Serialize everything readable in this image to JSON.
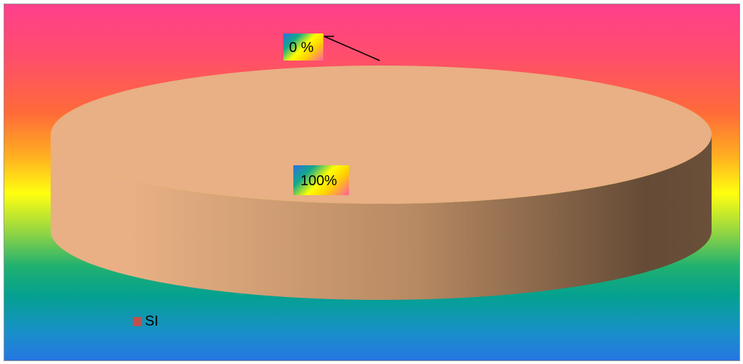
{
  "chart_data": {
    "type": "pie",
    "title": "",
    "categories": [
      "SI",
      ""
    ],
    "values": [
      100,
      0
    ],
    "data_labels": [
      "100%",
      "0 %"
    ],
    "legend": {
      "position": "bottom-left",
      "entries": [
        "SI"
      ]
    },
    "colors": {
      "slice_top": "#e8b084",
      "slice_side_light": "#e8b084",
      "slice_side_dark": "#654b36",
      "legend_swatch": "#c0504d"
    }
  }
}
